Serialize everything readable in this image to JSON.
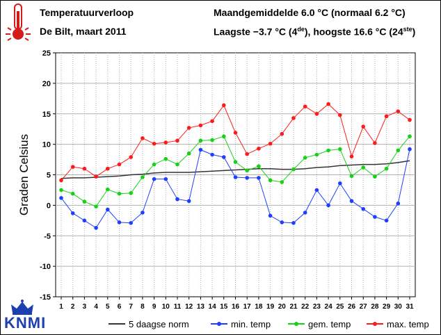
{
  "header": {
    "title": "Temperatuurverloop",
    "location": "De Bilt, maart 2011",
    "monthly_avg": "Maandgemiddelde 6.0 °C (normaal 6.2 °C)",
    "extremes": {
      "lowest_prefix": "Laagste −3.7 °C (4",
      "lowest_sup": "de",
      "middle": "), hoogste 16.6 °C (24",
      "highest_sup": "ste",
      "suffix": ")"
    }
  },
  "logo": {
    "text": "KNMI"
  },
  "colors": {
    "norm": "#333333",
    "min": "#1f3fff",
    "avg": "#17d117",
    "max": "#ff1a1a",
    "grid": "#b0b0b0"
  },
  "chart_data": {
    "type": "line",
    "ylabel": "Graden Celsius",
    "ylim": [
      -15,
      25
    ],
    "yticks": [
      -15,
      -10,
      -5,
      0,
      5,
      10,
      15,
      20,
      25
    ],
    "x": [
      1,
      2,
      3,
      4,
      5,
      6,
      7,
      8,
      9,
      10,
      11,
      12,
      13,
      14,
      15,
      16,
      17,
      18,
      19,
      20,
      21,
      22,
      23,
      24,
      25,
      26,
      27,
      28,
      29,
      30,
      31
    ],
    "grid": true,
    "legend_position": "bottom",
    "series": [
      {
        "name": "5 daagse norm",
        "key": "norm",
        "marker": false,
        "values": [
          4.4,
          4.5,
          4.5,
          4.6,
          4.7,
          4.8,
          5.0,
          5.1,
          5.3,
          5.4,
          5.4,
          5.4,
          5.5,
          5.6,
          5.7,
          5.8,
          5.9,
          6.0,
          6.0,
          5.9,
          5.9,
          6.0,
          6.2,
          6.3,
          6.5,
          6.6,
          6.7,
          6.7,
          6.8,
          7.0,
          7.3
        ]
      },
      {
        "name": "min. temp",
        "key": "min",
        "marker": true,
        "values": [
          1.2,
          -1.3,
          -2.5,
          -3.7,
          -0.7,
          -2.8,
          -2.9,
          -1.2,
          4.3,
          4.3,
          1.0,
          0.7,
          9.1,
          8.3,
          7.9,
          4.6,
          4.5,
          4.5,
          -1.7,
          -2.8,
          -2.9,
          -1.2,
          2.5,
          0.0,
          3.6,
          0.7,
          -0.6,
          -1.9,
          -2.5,
          0.3,
          9.2
        ]
      },
      {
        "name": "gem. temp",
        "key": "avg",
        "marker": true,
        "values": [
          2.5,
          1.9,
          0.6,
          -0.2,
          2.6,
          1.9,
          2.0,
          4.6,
          6.7,
          7.6,
          6.7,
          8.5,
          10.6,
          10.7,
          11.3,
          7.1,
          5.7,
          6.4,
          4.1,
          3.8,
          5.9,
          7.8,
          8.3,
          9.0,
          9.2,
          4.8,
          6.2,
          4.7,
          6.0,
          9.0,
          11.3
        ]
      },
      {
        "name": "max. temp",
        "key": "max",
        "marker": true,
        "values": [
          4.1,
          6.3,
          6.0,
          4.7,
          6.0,
          6.7,
          7.9,
          11.0,
          10.1,
          10.3,
          10.6,
          12.7,
          13.1,
          13.8,
          16.4,
          11.9,
          8.4,
          9.3,
          10.1,
          11.7,
          14.3,
          16.2,
          15.0,
          16.6,
          14.8,
          8.0,
          12.9,
          10.2,
          14.6,
          15.4,
          14.0
        ]
      }
    ]
  }
}
